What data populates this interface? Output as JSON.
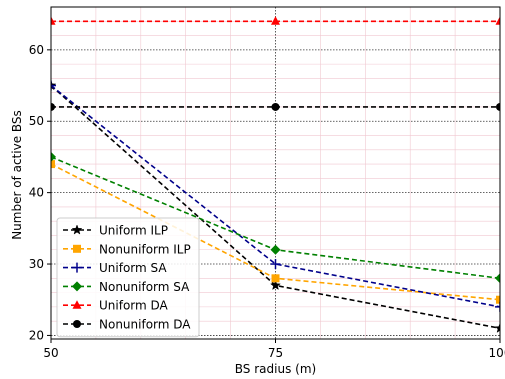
{
  "chart_data": {
    "type": "line",
    "xlabel": "BS radius (m)",
    "ylabel": "Number of active BSs",
    "xlim": [
      50,
      100
    ],
    "ylim": [
      19.5,
      66
    ],
    "xticks": [
      {
        "value": 50,
        "label": "50"
      },
      {
        "value": 75,
        "label": "75"
      },
      {
        "value": 100,
        "label": "100"
      }
    ],
    "yticks": [
      {
        "value": 20,
        "label": "20"
      },
      {
        "value": 30,
        "label": "30"
      },
      {
        "value": 40,
        "label": "40"
      },
      {
        "value": 50,
        "label": "50"
      },
      {
        "value": 60,
        "label": "60"
      }
    ],
    "x": [
      50,
      75,
      100
    ],
    "grid": true,
    "legend_position": "lower-left",
    "series": [
      {
        "name": "Uniform ILP",
        "values": [
          55,
          27,
          21
        ],
        "color": "#000000",
        "marker": "star"
      },
      {
        "name": "Nonuniform ILP",
        "values": [
          44,
          28,
          25
        ],
        "color": "#FFA500",
        "marker": "square"
      },
      {
        "name": "Uniform SA",
        "values": [
          55,
          30,
          24
        ],
        "color": "#00008B",
        "marker": "plus"
      },
      {
        "name": "Nonuniform SA",
        "values": [
          45,
          32,
          28
        ],
        "color": "#008000",
        "marker": "diamond"
      },
      {
        "name": "Uniform DA",
        "values": [
          64,
          64,
          64
        ],
        "color": "#FF0000",
        "marker": "triangle"
      },
      {
        "name": "Nonuniform DA",
        "values": [
          52,
          52,
          52
        ],
        "color": "#000000",
        "marker": "circle"
      }
    ]
  }
}
